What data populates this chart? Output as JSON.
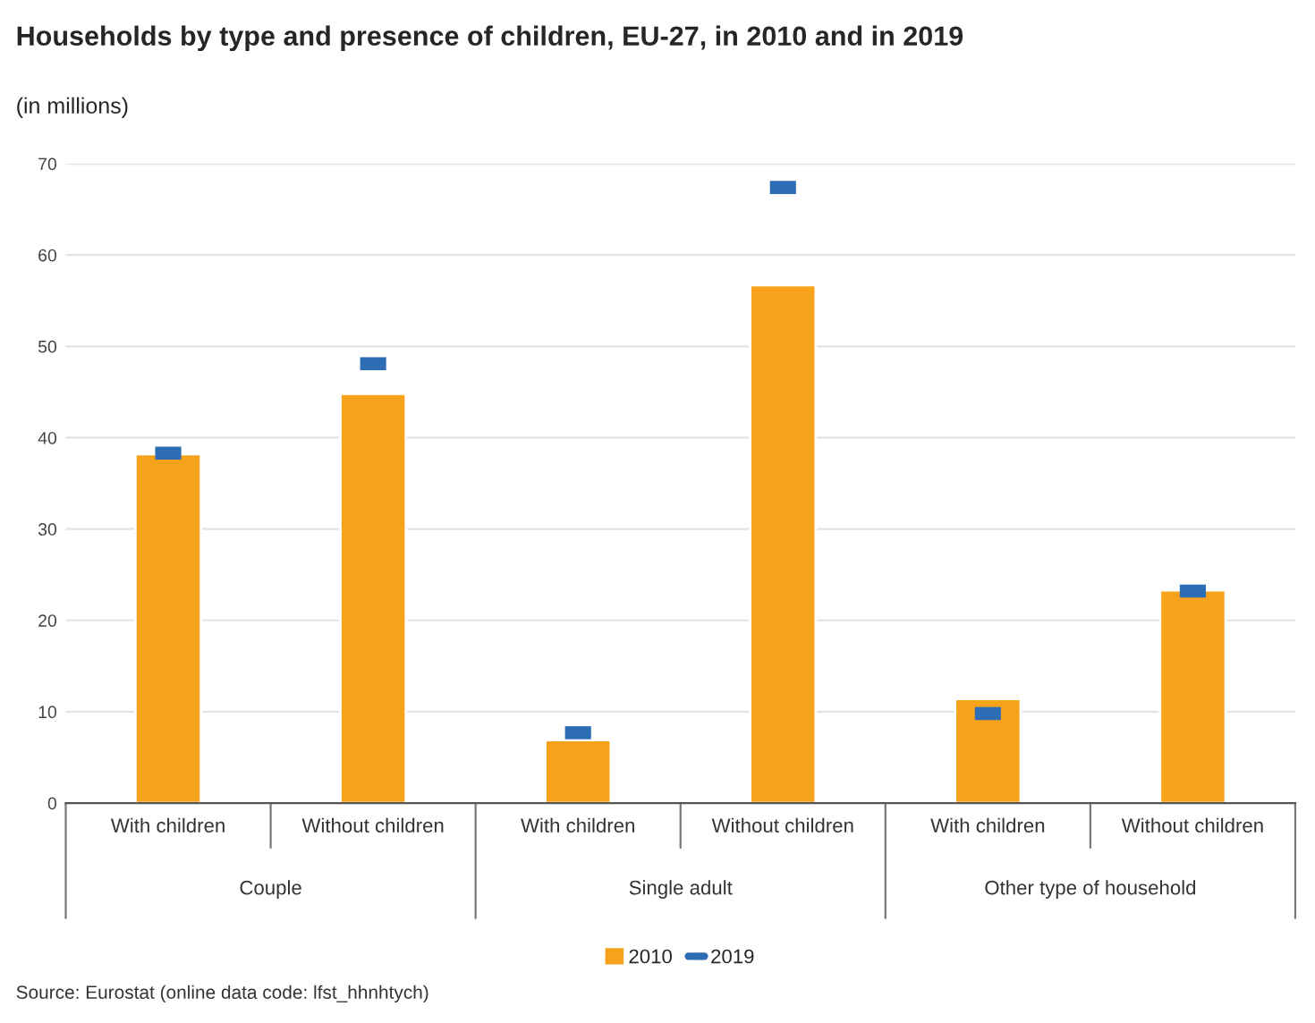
{
  "chart_data": {
    "type": "bar",
    "title": "Households by type and presence of children, EU-27, in 2010 and in 2019",
    "subtitle": "(in millions)",
    "categories": [
      "With children",
      "Without children",
      "With children",
      "Without children",
      "With children",
      "Without children"
    ],
    "series": [
      {
        "name": "2010",
        "color": "#f7a21b",
        "values": [
          38.2,
          44.8,
          6.9,
          56.7,
          11.4,
          23.3
        ]
      },
      {
        "name": "2019",
        "type": "scatter",
        "color": "#2c6db4",
        "values": [
          38.3,
          48.1,
          7.7,
          67.4,
          9.8,
          23.2
        ]
      }
    ],
    "ylim": [
      0,
      70
    ],
    "yticks": [
      0,
      10,
      20,
      30,
      40,
      50,
      60,
      70
    ],
    "grid": "y",
    "legend": "bottom",
    "annotations": [
      "Couple",
      "Single adult",
      "Other type of household",
      "Source: Eurostat (online data code: lfst_hhnhtych)"
    ]
  }
}
